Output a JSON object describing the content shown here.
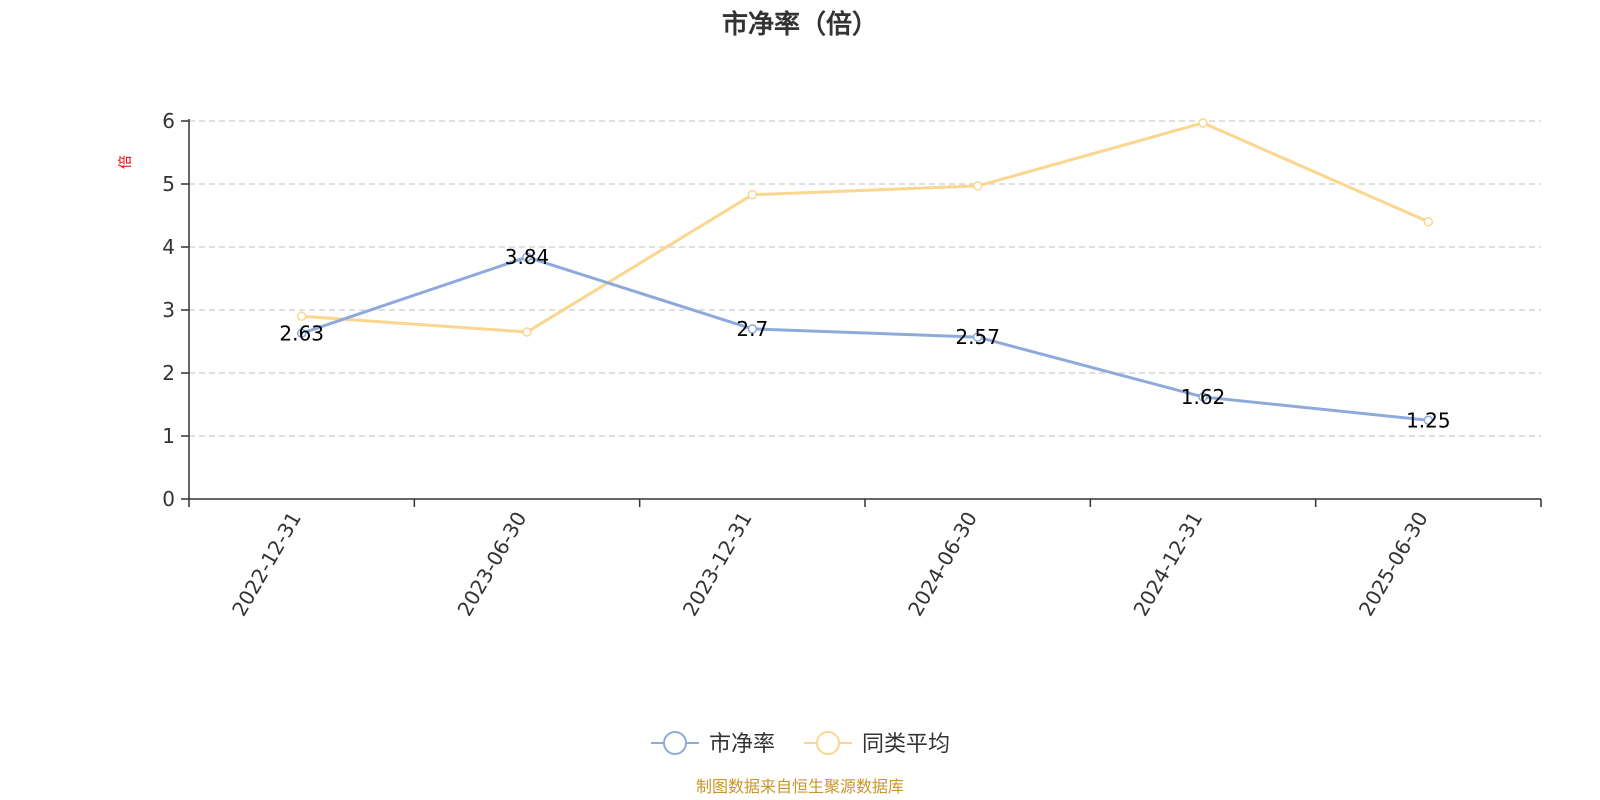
{
  "chart_data": {
    "type": "line",
    "title": "市净率（倍）",
    "ylabel": "倍",
    "categories": [
      "2022-12-31",
      "2023-06-30",
      "2023-12-31",
      "2024-06-30",
      "2024-12-31",
      "2025-06-30"
    ],
    "ylim": [
      0,
      6
    ],
    "yticks": [
      "0",
      "1",
      "2",
      "3",
      "4",
      "5",
      "6"
    ],
    "grid": true,
    "legend_position": "bottom",
    "series": [
      {
        "name": "市净率",
        "values": [
          2.63,
          3.84,
          2.7,
          2.57,
          1.62,
          1.25
        ],
        "labels": [
          "2.63",
          "3.84",
          "2.7",
          "2.57",
          "1.62",
          "1.25"
        ],
        "color": "#8eaadb"
      },
      {
        "name": "同类平均",
        "values": [
          2.9,
          2.65,
          4.83,
          4.97,
          5.97,
          4.4
        ],
        "color": "#fbd68f"
      }
    ]
  },
  "colors": {
    "axis": "#333333",
    "grid": "#cccccc",
    "unit": "#e60000",
    "source": "#c9962b"
  },
  "source_note": "制图数据来自恒生聚源数据库"
}
